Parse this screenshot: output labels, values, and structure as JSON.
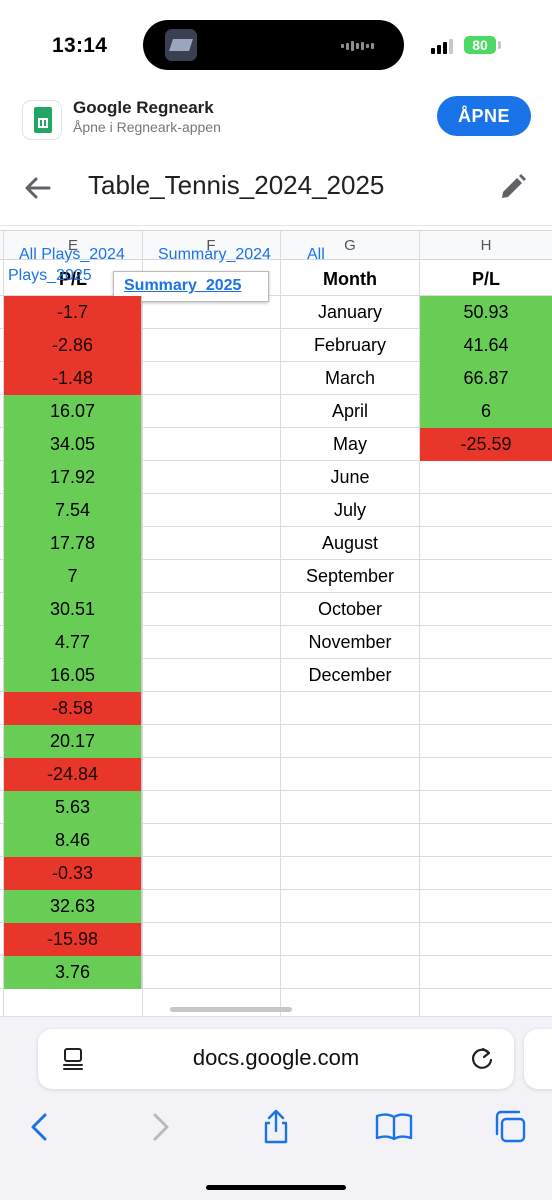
{
  "status_bar": {
    "time": "13:14",
    "battery": "80"
  },
  "app_banner": {
    "app_name": "Google Regneark",
    "subtitle": "Åpne i Regneark-appen",
    "open_label": "ÅPNE"
  },
  "doc": {
    "title": "Table_Tennis_2024_2025"
  },
  "sheet": {
    "columns": [
      "E",
      "F",
      "G",
      "H"
    ],
    "tabs": [
      "All Plays_2024",
      "Summary_2024",
      "All",
      "Plays_2025",
      "Summary_2025"
    ],
    "active_tab": "Summary_2025",
    "headers": {
      "e": "P/L",
      "g": "Month",
      "h": "P/L"
    },
    "pl_values": [
      "-1.7",
      "-2.86",
      "-1.48",
      "16.07",
      "34.05",
      "17.92",
      "7.54",
      "17.78",
      "7",
      "30.51",
      "4.77",
      "16.05",
      "-8.58",
      "20.17",
      "-24.84",
      "5.63",
      "8.46",
      "-0.33",
      "32.63",
      "-15.98",
      "3.76"
    ],
    "months": [
      "January",
      "February",
      "March",
      "April",
      "May",
      "June",
      "July",
      "August",
      "September",
      "October",
      "November",
      "December"
    ],
    "monthly_pl": [
      "50.93",
      "41.64",
      "66.87",
      "6",
      "-25.59"
    ],
    "colors": {
      "positive": "#67cd55",
      "negative": "#e9362b"
    }
  },
  "browser": {
    "url": "docs.google.com"
  }
}
